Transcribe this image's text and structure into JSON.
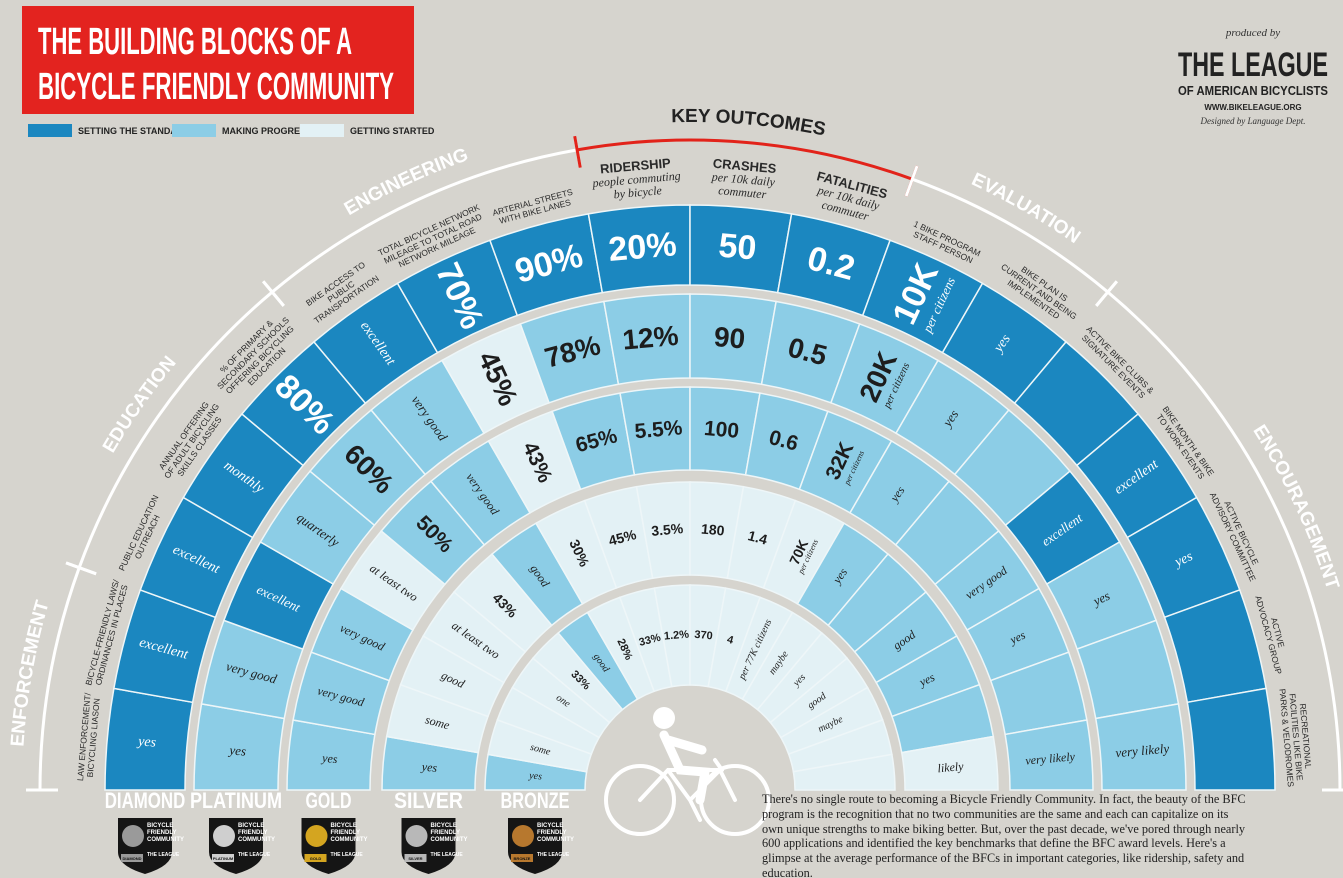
{
  "header": {
    "title_lines": [
      "THE BUILDING BLOCKS OF A",
      "BICYCLE FRIENDLY COMMUNITY"
    ]
  },
  "legend": [
    {
      "label": "SETTING THE STANDARD",
      "color": "#1b87c0"
    },
    {
      "label": "MAKING PROGRESS",
      "color": "#8ccde6"
    },
    {
      "label": "GETTING STARTED",
      "color": "#e3f1f5"
    }
  ],
  "credits": {
    "produced_by": "produced by",
    "org_lines": [
      "THE LEAGUE",
      "OF AMERICAN BICYCLISTS"
    ],
    "url": "WWW.BIKELEAGUE.ORG",
    "designer": "Designed by Language Dept."
  },
  "sections": [
    {
      "label": "ENFORCEMENT",
      "color": "#ffffff",
      "label_color": "#ffffff",
      "columns": [
        {
          "label_lines": [
            "LAW ENFORCEMENT/",
            "BICYCLING LIASON"
          ]
        },
        {
          "label_lines": [
            "BICYCLE-FRIENDLY LAWS/",
            "ORDINANCES IN PLACES"
          ]
        }
      ]
    },
    {
      "label": "EDUCATION",
      "color": "#ffffff",
      "label_color": "#ffffff",
      "columns": [
        {
          "label_lines": [
            "PUBLIC EDUCATION",
            "OUTREACH"
          ]
        },
        {
          "label_lines": [
            "ANNUAL OFFERING",
            "OF ADULT BICYCLING",
            "SKILLS CLASSES"
          ]
        },
        {
          "label_lines": [
            "% OF PRIMARY &",
            "SECONDARY SCHOOLS",
            "OFFERING BICYCLING",
            "EDUCATION"
          ]
        }
      ]
    },
    {
      "label": "ENGINEERING",
      "color": "#ffffff",
      "label_color": "#ffffff",
      "columns": [
        {
          "label_lines": [
            "BIKE ACCESS TO",
            "PUBLIC",
            "TRANSPORTATION"
          ]
        },
        {
          "label_lines": [
            "TOTAL BICYCLE NETWORK",
            "MILEAGE TO TOTAL ROAD",
            "NETWORK MILEAGE"
          ]
        },
        {
          "label_lines": [
            "ARTERIAL STREETS",
            "WITH BIKE LANES"
          ]
        }
      ]
    },
    {
      "label": "KEY OUTCOMES",
      "color": "#e2231a",
      "label_color": "#222222",
      "columns": [
        {
          "label_lines": [
            "RIDERSHIP"
          ],
          "sub_lines": [
            "people commuting",
            "by bicycle"
          ]
        },
        {
          "label_lines": [
            "CRASHES"
          ],
          "sub_lines": [
            "per 10k daily",
            "commuter"
          ]
        },
        {
          "label_lines": [
            "FATALITIES"
          ],
          "sub_lines": [
            "per 10k daily",
            "commuter"
          ]
        }
      ]
    },
    {
      "label": "EVALUATION",
      "color": "#ffffff",
      "label_color": "#ffffff",
      "columns": [
        {
          "label_lines": [
            "1 BIKE PROGRAM",
            "STAFF PERSON"
          ]
        },
        {
          "label_lines": [
            "BIKE PLAN IS",
            "CURRENT AND BEING",
            "IMPLEMENTED"
          ]
        }
      ]
    },
    {
      "label": "ENCOURAGEMENT",
      "color": "#ffffff",
      "label_color": "#ffffff",
      "columns": [
        {
          "label_lines": [
            "ACTIVE BIKE CLUBS &",
            "SIGNATURE EVENTS"
          ]
        },
        {
          "label_lines": [
            "BIKE MONTH & BIKE",
            "TO WORK EVENTS"
          ]
        },
        {
          "label_lines": [
            "ACTIVE BICYCLE",
            "ADVISORY COMMITTEE"
          ]
        },
        {
          "label_lines": [
            "ACTIVE",
            "ADVOCACY GROUP"
          ]
        },
        {
          "label_lines": [
            "RECREATIONAL",
            "FACILITIES LIKE BIKE",
            "PARKS & VELODROMES"
          ]
        }
      ]
    }
  ],
  "rings": [
    {
      "name": "DIAMOND",
      "badge_color": "#9a9a9a",
      "cells": [
        {
          "text": "yes",
          "level": 0
        },
        {
          "text": "excellent",
          "level": 0
        },
        {
          "text": "excellent",
          "level": 0
        },
        {
          "text": "monthly",
          "level": 0
        },
        {
          "text": "80%",
          "level": 0
        },
        {
          "text": "excellent",
          "level": 0
        },
        {
          "text": "70%",
          "level": 0
        },
        {
          "text": "90%",
          "level": 0
        },
        {
          "text": "20%",
          "level": 0
        },
        {
          "text": "50",
          "level": 0
        },
        {
          "text": "0.2",
          "level": 0
        },
        {
          "text": "10K",
          "note": "per citizens",
          "level": 0
        },
        {
          "text": "yes",
          "level": 0
        },
        {
          "text": null,
          "level": 0
        },
        {
          "text": "excellent",
          "level": 0
        },
        {
          "text": "yes",
          "level": 0
        },
        {
          "text": null,
          "level": 0
        },
        {
          "text": null,
          "level": 0
        }
      ]
    },
    {
      "name": "PLATINUM",
      "badge_color": "#cfcfcf",
      "cells": [
        {
          "text": "yes",
          "level": 1
        },
        {
          "text": "very good",
          "level": 1
        },
        {
          "text": "excellent",
          "level": 0
        },
        {
          "text": "quarterly",
          "level": 1
        },
        {
          "text": "60%",
          "level": 1
        },
        {
          "text": "very good",
          "level": 1
        },
        {
          "text": "45%",
          "level": 2
        },
        {
          "text": "78%",
          "level": 1
        },
        {
          "text": "12%",
          "level": 1
        },
        {
          "text": "90",
          "level": 1
        },
        {
          "text": "0.5",
          "level": 1
        },
        {
          "text": "20K",
          "note": "per citizens",
          "level": 1
        },
        {
          "text": "yes",
          "level": 1
        },
        {
          "text": null,
          "level": 1
        },
        {
          "text": "excellent",
          "level": 0
        },
        {
          "text": "yes",
          "level": 1
        },
        {
          "text": null,
          "level": 1
        },
        {
          "text": "very likely",
          "level": 1
        }
      ]
    },
    {
      "name": "GOLD",
      "badge_color": "#d4a520",
      "cells": [
        {
          "text": "yes",
          "level": 1
        },
        {
          "text": "very good",
          "level": 1
        },
        {
          "text": "very good",
          "level": 1
        },
        {
          "text": "at least two",
          "level": 2
        },
        {
          "text": "50%",
          "level": 1
        },
        {
          "text": "very good",
          "level": 1
        },
        {
          "text": "43%",
          "level": 2
        },
        {
          "text": "65%",
          "level": 1
        },
        {
          "text": "5.5%",
          "level": 1
        },
        {
          "text": "100",
          "level": 1
        },
        {
          "text": "0.6",
          "level": 1
        },
        {
          "text": "32K",
          "note": "per citizens",
          "level": 1
        },
        {
          "text": "yes",
          "level": 1
        },
        {
          "text": null,
          "level": 1
        },
        {
          "text": "very good",
          "level": 1
        },
        {
          "text": "yes",
          "level": 1
        },
        {
          "text": null,
          "level": 1
        },
        {
          "text": "very likely",
          "level": 1
        }
      ]
    },
    {
      "name": "SILVER",
      "badge_color": "#b8b8b8",
      "cells": [
        {
          "text": "yes",
          "level": 1
        },
        {
          "text": "some",
          "level": 2
        },
        {
          "text": "good",
          "level": 2
        },
        {
          "text": "at least two",
          "level": 2
        },
        {
          "text": "43%",
          "level": 2
        },
        {
          "text": "good",
          "level": 1
        },
        {
          "text": "30%",
          "level": 2
        },
        {
          "text": "45%",
          "level": 2
        },
        {
          "text": "3.5%",
          "level": 2
        },
        {
          "text": "180",
          "level": 2
        },
        {
          "text": "1.4",
          "level": 2
        },
        {
          "text": "70K",
          "note": "per citizens",
          "level": 2
        },
        {
          "text": "yes",
          "level": 1
        },
        {
          "text": null,
          "level": 1
        },
        {
          "text": "good",
          "level": 1
        },
        {
          "text": "yes",
          "level": 1
        },
        {
          "text": null,
          "level": 1
        },
        {
          "text": "likely",
          "level": 2
        }
      ]
    },
    {
      "name": "BRONZE",
      "badge_color": "#b7782e",
      "cells": [
        {
          "text": "yes",
          "level": 1
        },
        {
          "text": "some",
          "level": 2
        },
        {
          "text": null,
          "level": 2
        },
        {
          "text": "one",
          "level": 2
        },
        {
          "text": "33%",
          "level": 2
        },
        {
          "text": "good",
          "level": 1
        },
        {
          "text": "28%",
          "level": 2
        },
        {
          "text": "33%",
          "level": 2
        },
        {
          "text": "1.2%",
          "level": 2
        },
        {
          "text": "370",
          "level": 2
        },
        {
          "text": "4",
          "level": 2
        },
        {
          "text": "per 77K citizens",
          "level": 2
        },
        {
          "text": "maybe",
          "level": 2
        },
        {
          "text": "yes",
          "level": 2
        },
        {
          "text": "good",
          "level": 2
        },
        {
          "text": "maybe",
          "level": 2
        },
        {
          "text": null,
          "level": 2
        },
        {
          "text": null,
          "level": 2
        }
      ]
    }
  ],
  "badge": {
    "lines": [
      "BICYCLE",
      "FRIENDLY",
      "COMMUNITY"
    ],
    "league": "THE LEAGUE"
  },
  "footer": "There's no single route to becoming a Bicycle Friendly Community. In fact, the beauty of the BFC program is the recognition that no two communities are the same and each can capitalize on its own unique strengths to make biking better. But, over the past decade, we've pored through nearly 600 applications and identified the key benchmarks that define the BFC award levels. Here's a glimpse at the average performance of the BFCs in important categories, like ridership, safety and education."
}
